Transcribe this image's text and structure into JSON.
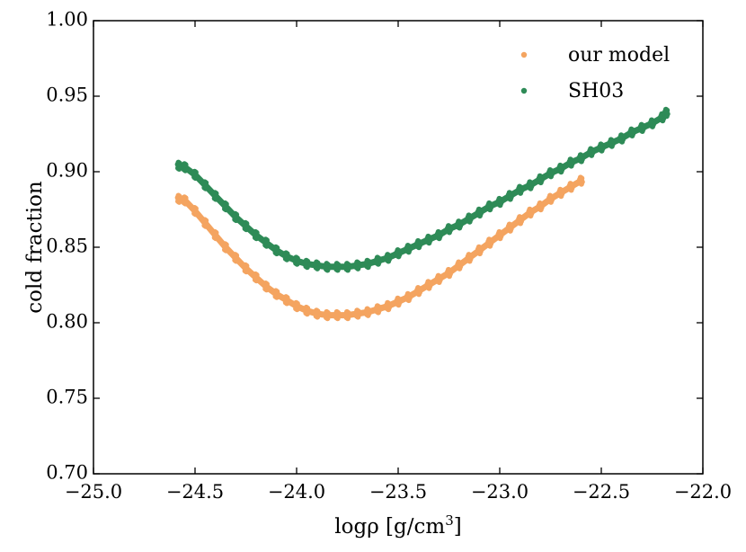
{
  "chart_data": {
    "type": "scatter",
    "title": "",
    "xlabel_main": "logρ [g/cm",
    "xlabel_sup": "3",
    "xlabel_close": "]",
    "ylabel": "cold fraction",
    "xlim": [
      -25.0,
      -22.0
    ],
    "ylim": [
      0.7,
      1.0
    ],
    "xticks": [
      -25.0,
      -24.5,
      -24.0,
      -23.5,
      -23.0,
      -22.5,
      -22.0
    ],
    "xtick_labels": [
      "−25.0",
      "−24.5",
      "−24.0",
      "−23.5",
      "−23.0",
      "−22.5",
      "−22.0"
    ],
    "yticks": [
      0.7,
      0.75,
      0.8,
      0.85,
      0.9,
      0.95,
      1.0
    ],
    "ytick_labels": [
      "0.70",
      "0.75",
      "0.80",
      "0.85",
      "0.90",
      "0.95",
      "1.00"
    ],
    "legend_position": "top-right",
    "series": [
      {
        "name": "our model",
        "color": "#f4a460",
        "x": [
          -24.58,
          -24.55,
          -24.5,
          -24.45,
          -24.4,
          -24.35,
          -24.3,
          -24.25,
          -24.2,
          -24.15,
          -24.1,
          -24.05,
          -24.0,
          -23.95,
          -23.9,
          -23.85,
          -23.8,
          -23.75,
          -23.7,
          -23.65,
          -23.6,
          -23.55,
          -23.5,
          -23.45,
          -23.4,
          -23.35,
          -23.3,
          -23.25,
          -23.2,
          -23.15,
          -23.1,
          -23.05,
          -23.0,
          -22.95,
          -22.9,
          -22.85,
          -22.8,
          -22.75,
          -22.7,
          -22.65,
          -22.6
        ],
        "y": [
          0.882,
          0.881,
          0.874,
          0.866,
          0.858,
          0.85,
          0.843,
          0.836,
          0.83,
          0.824,
          0.819,
          0.815,
          0.811,
          0.808,
          0.806,
          0.805,
          0.805,
          0.805,
          0.806,
          0.807,
          0.809,
          0.811,
          0.814,
          0.817,
          0.821,
          0.825,
          0.829,
          0.833,
          0.838,
          0.843,
          0.848,
          0.853,
          0.858,
          0.863,
          0.868,
          0.873,
          0.877,
          0.882,
          0.886,
          0.89,
          0.894
        ]
      },
      {
        "name": "SH03",
        "color": "#2e8b57",
        "x": [
          -24.58,
          -24.55,
          -24.5,
          -24.45,
          -24.4,
          -24.35,
          -24.3,
          -24.25,
          -24.2,
          -24.15,
          -24.1,
          -24.05,
          -24.0,
          -23.95,
          -23.9,
          -23.85,
          -23.8,
          -23.75,
          -23.7,
          -23.65,
          -23.6,
          -23.55,
          -23.5,
          -23.45,
          -23.4,
          -23.35,
          -23.3,
          -23.25,
          -23.2,
          -23.15,
          -23.1,
          -23.05,
          -23.0,
          -22.95,
          -22.9,
          -22.85,
          -22.8,
          -22.75,
          -22.7,
          -22.65,
          -22.6,
          -22.55,
          -22.5,
          -22.45,
          -22.4,
          -22.35,
          -22.3,
          -22.25,
          -22.2,
          -22.18
        ],
        "y": [
          0.904,
          0.903,
          0.898,
          0.891,
          0.884,
          0.877,
          0.87,
          0.864,
          0.858,
          0.853,
          0.848,
          0.844,
          0.841,
          0.839,
          0.838,
          0.837,
          0.837,
          0.837,
          0.838,
          0.839,
          0.841,
          0.843,
          0.846,
          0.849,
          0.852,
          0.855,
          0.858,
          0.862,
          0.865,
          0.869,
          0.873,
          0.877,
          0.88,
          0.884,
          0.888,
          0.891,
          0.895,
          0.899,
          0.902,
          0.906,
          0.909,
          0.913,
          0.916,
          0.919,
          0.922,
          0.926,
          0.929,
          0.932,
          0.936,
          0.939
        ]
      }
    ]
  }
}
